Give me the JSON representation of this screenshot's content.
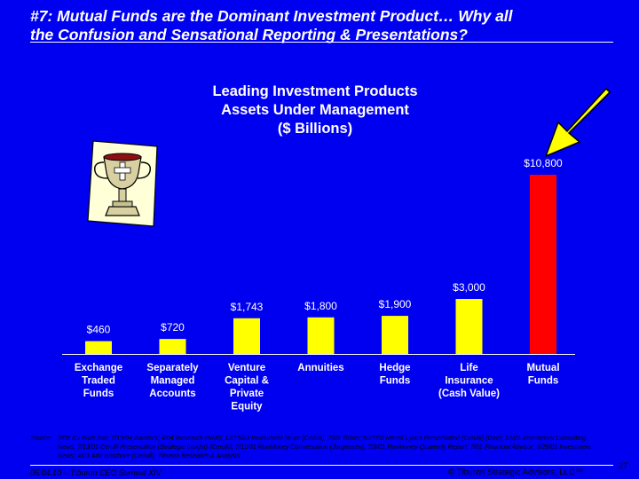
{
  "slide": {
    "title_line1": "#7: Mutual Funds are the Dominant Investment Product…  Why all",
    "title_line2": "the Confusion and Sensational Reporting & Presentations?",
    "source_label": "Source:",
    "source_text": "3/05 ICI Web Site; 7/19/04 Barron's; 4/04 Research (MMI); 12/15/03 Investment News (Cerulli); 7/03 Ticker; 5/27/02 Merrill Lynch Presentation (Cerulli) (Doe); 10/01 Investment Consulting News; 7/13/01 Cerulli Presentation (Strategic Insight) (Cerulli); 7/11/01 RunMoney Conversation (Jorgensen); 7/3/01 RunMoney Quarterly Report; 7/01 Financial Advisor; 6/25/01 Investment News; 4/01 AIM Brochure (Cerulli); Tiburon Research & Analysis",
    "footer_left": "06.04.10 – Tiburon CEO Summit XIV",
    "footer_right": "© Tiburon Strategic Advisors, LLC™",
    "page_number": "27",
    "background_color": "#0000F0"
  },
  "chart_data": {
    "type": "bar",
    "title_lines": [
      "Leading Investment Products",
      "Assets Under Management",
      "($ Billions)"
    ],
    "categories": [
      [
        "Exchange",
        "Traded",
        "Funds"
      ],
      [
        "Separately",
        "Managed",
        "Accounts"
      ],
      [
        "Venture",
        "Capital &",
        "Private",
        "Equity"
      ],
      [
        "Annuities"
      ],
      [
        "Hedge",
        "Funds"
      ],
      [
        "Life",
        "Insurance",
        "(Cash Value)"
      ],
      [
        "Mutual",
        "Funds"
      ]
    ],
    "values": [
      460,
      720,
      1743,
      1800,
      1900,
      3000,
      10800
    ],
    "data_labels": [
      "$460",
      "$720",
      "$1,743",
      "$1,800",
      "$1,900",
      "$3,000",
      "$10,800"
    ],
    "ylim": [
      0,
      10800
    ],
    "colors": [
      "#FFFF00",
      "#FFFF00",
      "#FFFF00",
      "#FFFF00",
      "#FFFF00",
      "#FFFF00",
      "#FF0000"
    ],
    "grid": false,
    "axis_broken": true,
    "icons": [
      "trophy-icon",
      "arrow-icon"
    ]
  }
}
